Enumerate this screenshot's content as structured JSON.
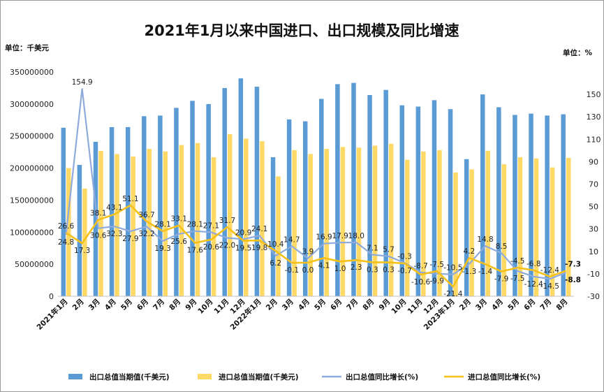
{
  "chart_data": {
    "type": "bar",
    "title": "2021年1月以来中国进口、出口规模及同比增速",
    "left_unit": "单位：千美元",
    "right_unit": "单位：%",
    "categories": [
      "2021年1月",
      "2月",
      "3月",
      "4月",
      "5月",
      "6月",
      "7月",
      "8月",
      "9月",
      "10月",
      "11月",
      "12月",
      "2022年1月",
      "2月",
      "3月",
      "4月",
      "5月",
      "6月",
      "7月",
      "8月",
      "9月",
      "10月",
      "11月",
      "12月",
      "2023年1月",
      "2月",
      "3月",
      "4月",
      "5月",
      "6月",
      "7月",
      "8月"
    ],
    "ylim": [
      0,
      350000000
    ],
    "yticks": [
      "0",
      "50000000",
      "100000000",
      "150000000",
      "200000000",
      "250000000",
      "300000000",
      "350000000"
    ],
    "y2lim": [
      -30,
      170
    ],
    "y2ticks": [
      "-30",
      "-10",
      "10",
      "30",
      "50",
      "70",
      "90",
      "110",
      "130",
      "150"
    ],
    "series": [
      {
        "name": "出口总值当期值(千美元)",
        "kind": "bar",
        "axis": "left",
        "color": "#5b9bd5",
        "values": [
          263000000,
          205000000,
          241000000,
          264000000,
          264000000,
          281000000,
          282000000,
          294000000,
          305000000,
          300000000,
          325000000,
          340000000,
          327000000,
          217000000,
          276000000,
          273000000,
          308000000,
          331000000,
          333000000,
          314000000,
          322000000,
          298000000,
          296000000,
          306000000,
          292000000,
          214000000,
          315000000,
          295000000,
          283000000,
          285000000,
          282000000,
          284000000
        ]
      },
      {
        "name": "进口总值当期值(千美元)",
        "kind": "bar",
        "axis": "left",
        "color": "#ffd966",
        "values": [
          200000000,
          168000000,
          227000000,
          222000000,
          218000000,
          230000000,
          226000000,
          236000000,
          239000000,
          217000000,
          253000000,
          246000000,
          242000000,
          187000000,
          228000000,
          222000000,
          230000000,
          233000000,
          232000000,
          235000000,
          238000000,
          213000000,
          226000000,
          228000000,
          193000000,
          198000000,
          227000000,
          206000000,
          217000000,
          215000000,
          201000000,
          216000000
        ]
      },
      {
        "name": "出口总值同比增长(%)",
        "kind": "line",
        "axis": "right",
        "color": "#8faadc",
        "values": [
          24.8,
          154.9,
          30.6,
          32.3,
          27.9,
          32.2,
          19.3,
          25.6,
          28.1,
          27.1,
          22.0,
          20.9,
          24.1,
          6.2,
          14.7,
          3.9,
          16.9,
          17.9,
          18.0,
          7.1,
          5.7,
          -0.3,
          -8.7,
          -9.9,
          -10.5,
          -1.3,
          14.8,
          8.5,
          -7.5,
          -12.4,
          -14.5,
          -8.8
        ],
        "labels": [
          "24.8",
          "154.9",
          "30.6",
          "32.3",
          "27.9",
          "32.2",
          "19.3",
          "25.6",
          "28.1",
          "27.1",
          "22.0",
          "20.9",
          "24.1",
          "6.2",
          "14.7",
          "3.9",
          "16.9",
          "17.9",
          "18.0",
          "7.1",
          "5.7",
          "-0.3",
          "-8.7",
          "-9.9",
          "-10.5",
          "-1.3",
          "14.8",
          "8.5",
          "-7.5",
          "-12.4",
          "-14.5",
          "-8.8"
        ]
      },
      {
        "name": "进口总值同比增长(%)",
        "kind": "line",
        "axis": "right",
        "color": "#f5c018",
        "values": [
          26.6,
          17.3,
          38.1,
          43.1,
          51.1,
          36.7,
          28.1,
          33.1,
          17.6,
          20.6,
          31.7,
          19.5,
          19.8,
          10.4,
          -0.1,
          0.0,
          4.1,
          1.0,
          2.3,
          0.3,
          0.3,
          -0.7,
          -10.6,
          -7.5,
          -21.4,
          4.2,
          -1.4,
          -7.9,
          -4.5,
          -6.8,
          -12.4,
          -7.3
        ],
        "labels": [
          "26.6",
          "17.3",
          "38.1",
          "43.1",
          "51.1",
          "36.7",
          "28.1",
          "33.1",
          "17.6",
          "20.6",
          "31.7",
          "19.5",
          "19.8",
          "10.4",
          "-0.1",
          "0.0",
          "4.1",
          "1.0",
          "2.3",
          "0.3",
          "0.3",
          "-0.7",
          "-10.6",
          "-7.5",
          "-21.4",
          "4.2",
          "-1.4",
          "-7.9",
          "-4.5",
          "-6.8",
          "-12.4",
          "-7.3"
        ]
      }
    ],
    "legend_position": "bottom",
    "grid": false
  }
}
